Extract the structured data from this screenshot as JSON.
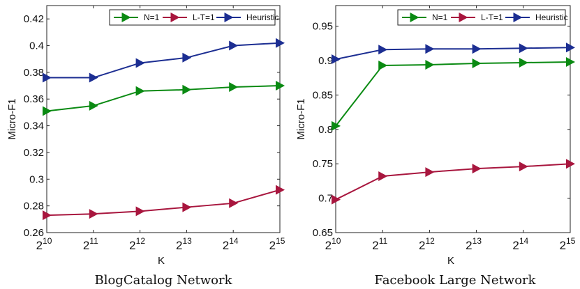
{
  "chart_data": [
    {
      "type": "line",
      "caption": "BlogCatalog Network",
      "xlabel": "K",
      "ylabel": "Micro-F1",
      "x_ticks": [
        {
          "base": "2",
          "exp": "10"
        },
        {
          "base": "2",
          "exp": "11"
        },
        {
          "base": "2",
          "exp": "12"
        },
        {
          "base": "2",
          "exp": "13"
        },
        {
          "base": "2",
          "exp": "14"
        },
        {
          "base": "2",
          "exp": "15"
        }
      ],
      "x": [
        10,
        11,
        12,
        13,
        14,
        15
      ],
      "ylim": [
        0.26,
        0.43
      ],
      "y_ticks": [
        0.26,
        0.28,
        0.3,
        0.32,
        0.34,
        0.36,
        0.38,
        0.4,
        0.42
      ],
      "y_tick_labels": [
        "0.26",
        "0.28",
        "0.3",
        "0.32",
        "0.34",
        "0.36",
        "0.38",
        "0.4",
        "0.42"
      ],
      "legend_position": "top-right",
      "series": [
        {
          "name": "N=1",
          "color": "#0a8a12",
          "values": [
            0.351,
            0.355,
            0.366,
            0.367,
            0.369,
            0.37
          ]
        },
        {
          "name": "L-T=1",
          "color": "#a8163e",
          "values": [
            0.273,
            0.274,
            0.276,
            0.279,
            0.282,
            0.292
          ]
        },
        {
          "name": "Heuristic",
          "color": "#1c2e92",
          "values": [
            0.376,
            0.376,
            0.387,
            0.391,
            0.4,
            0.402
          ]
        }
      ]
    },
    {
      "type": "line",
      "caption": "Facebook Large Network",
      "xlabel": "K",
      "ylabel": "Micro-F1",
      "x_ticks": [
        {
          "base": "2",
          "exp": "10"
        },
        {
          "base": "2",
          "exp": "11"
        },
        {
          "base": "2",
          "exp": "12"
        },
        {
          "base": "2",
          "exp": "13"
        },
        {
          "base": "2",
          "exp": "14"
        },
        {
          "base": "2",
          "exp": "15"
        }
      ],
      "x": [
        10,
        11,
        12,
        13,
        14,
        15
      ],
      "ylim": [
        0.65,
        0.98
      ],
      "y_ticks": [
        0.65,
        0.7,
        0.75,
        0.8,
        0.85,
        0.9,
        0.95
      ],
      "y_tick_labels": [
        "0.65",
        "0.7",
        "0.75",
        "0.8",
        "0.85",
        "0.9",
        "0.95"
      ],
      "legend_position": "top-right",
      "series": [
        {
          "name": "N=1",
          "color": "#0a8a12",
          "values": [
            0.805,
            0.893,
            0.894,
            0.896,
            0.897,
            0.898
          ]
        },
        {
          "name": "L-T=1",
          "color": "#a8163e",
          "values": [
            0.698,
            0.732,
            0.738,
            0.743,
            0.746,
            0.75
          ]
        },
        {
          "name": "Heuristic",
          "color": "#1c2e92",
          "values": [
            0.902,
            0.916,
            0.917,
            0.917,
            0.918,
            0.919
          ]
        }
      ]
    }
  ]
}
